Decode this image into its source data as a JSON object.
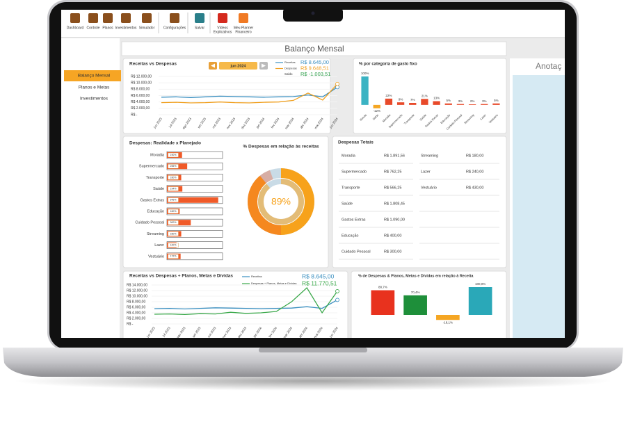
{
  "toolbar": {
    "buttons": [
      [
        "Dashboard"
      ],
      [
        "Controle"
      ],
      [
        "Planos"
      ],
      [
        "Investimentos"
      ],
      [
        "Simulador"
      ],
      [
        "Configurações"
      ],
      [
        "Salvar"
      ],
      [
        "Vídeos",
        "Explicativos"
      ],
      [
        "Meu Planner",
        "Financeiro"
      ]
    ]
  },
  "sidebar": [
    "Balanço Mensal",
    "Planos e Metas",
    "Investimentos"
  ],
  "header": {
    "title": "Balanço Mensal",
    "notes_title": "Anotaç"
  },
  "month_selector": "jun 2024",
  "expenses_table": {
    "title": "Despesas Totais",
    "left_rows": [
      [
        "Moradia",
        "R$ 1.891,56"
      ],
      [
        "Supermercado",
        "R$ 762,25"
      ],
      [
        "Transporte",
        "R$ 566,25"
      ],
      [
        "Saúde",
        "R$ 1.808,45"
      ],
      [
        "Gastos Extras",
        "R$ 1.090,00"
      ],
      [
        "Educação",
        "R$ 400,00"
      ],
      [
        "Cuidado Pessoal",
        "R$ 300,00"
      ]
    ],
    "right_rows": [
      [
        "Streaming",
        "R$ 180,00"
      ],
      [
        "Lazer",
        "R$ 240,00"
      ],
      [
        "Vestuário",
        "R$ 430,00"
      ]
    ]
  },
  "chart_data": [
    {
      "type": "line",
      "title": "Receitas vs Despesas",
      "categories": [
        "jun 2023",
        "jul 2023",
        "ago 2023",
        "set 2023",
        "out 2023",
        "nov 2023",
        "dez 2023",
        "jan 2024",
        "fev 2024",
        "mar 2024",
        "abr 2024",
        "mai 2024",
        "jun 2024"
      ],
      "series": [
        {
          "name": "Receitas",
          "color": "#3a8fc0",
          "values": [
            5500,
            5600,
            5400,
            5600,
            5800,
            5700,
            5600,
            5500,
            5600,
            5700,
            6200,
            5600,
            8645
          ],
          "legend_value": "R$ 8.645,00"
        },
        {
          "name": "Despesas",
          "color": "#f0a020",
          "values": [
            3800,
            3900,
            3700,
            3800,
            4000,
            3800,
            3700,
            3900,
            4000,
            4500,
            6800,
            4600,
            9648.51
          ],
          "legend_value": "R$ 9.648,51"
        }
      ],
      "summary": {
        "name": "Saldo",
        "color": "#2e9e4a",
        "value": -1003.51,
        "value_label": "R$ -1.003,51"
      },
      "ylim": [
        0,
        12000
      ],
      "yticks": [
        {
          "value": 0,
          "label": "R$ -"
        },
        {
          "value": 2000,
          "label": "R$ 2.000,00"
        },
        {
          "value": 4000,
          "label": "R$ 4.000,00"
        },
        {
          "value": 6000,
          "label": "R$ 6.000,00"
        },
        {
          "value": 8000,
          "label": "R$ 8.000,00"
        },
        {
          "value": 10000,
          "label": "R$ 10.000,00"
        },
        {
          "value": 12000,
          "label": "R$ 12.000,00"
        }
      ]
    },
    {
      "type": "bar",
      "title": "% por categoria de gasto fixo",
      "categories": [
        "Renda",
        "Saldo",
        "Moradia",
        "Supermercado",
        "Transporte",
        "Saúde",
        "Gastos Extras",
        "Educação",
        "Cuidado Pessoal",
        "Streaming",
        "Lazer",
        "Vestuário"
      ],
      "values": [
        100,
        -12,
        22,
        9,
        7,
        21,
        13,
        5,
        3,
        2,
        3,
        5
      ],
      "value_labels": [
        "100%",
        "-12%",
        "22%",
        "9%",
        "7%",
        "21%",
        "13%",
        "5%",
        "3%",
        "2%",
        "3%",
        "5%"
      ],
      "colors": [
        "#3bb3c3",
        "#f5a623",
        "#e84a2a",
        "#e84a2a",
        "#e84a2a",
        "#e84a2a",
        "#e84a2a",
        "#e84a2a",
        "#e84a2a",
        "#e84a2a",
        "#e84a2a",
        "#e84a2a"
      ],
      "ylim": [
        -15,
        100
      ]
    },
    {
      "type": "hbar",
      "title": "Despesas: Realidade x Planejado",
      "categories": [
        "Moradia",
        "Supermercado",
        "Transporte",
        "Saúde",
        "Gastos Extras",
        "Educação",
        "Cuidado Pessoal",
        "Streaming",
        "Lazer",
        "Vestuário"
      ],
      "values": [
        190,
        255,
        180,
        194,
        645,
        160,
        300,
        180,
        120,
        172
      ],
      "value_labels": [
        "190%",
        "255%",
        "180%",
        "194%",
        "645%",
        "160%",
        "300%",
        "180%",
        "120%",
        "172%"
      ],
      "color": "#f05a28",
      "xlim": [
        0,
        700
      ]
    },
    {
      "type": "donut",
      "title": "% Despesas em relação às receitas",
      "values": [
        89
      ],
      "value_labels": [
        "89%"
      ],
      "color": "#f7a21b"
    },
    {
      "type": "line",
      "title": "Receitas vs Despesas + Planos, Metas e Dívidas",
      "categories": [
        "jun 2023",
        "jul 2023",
        "ago 2023",
        "set 2023",
        "out 2023",
        "nov 2023",
        "dez 2023",
        "jan 2024",
        "fev 2024",
        "mar 2024",
        "abr 2024",
        "mai 2024",
        "jun 2024"
      ],
      "series": [
        {
          "name": "Receitas",
          "color": "#3a8fc0",
          "values": [
            5500,
            5600,
            5400,
            5600,
            5800,
            5700,
            5600,
            5500,
            5600,
            5700,
            6200,
            5600,
            8645
          ],
          "legend_value": "R$ 8.645,00"
        },
        {
          "name": "Despesas + Planos, Metas e Dívidas",
          "color": "#3aa84a",
          "values": [
            3500,
            3600,
            3400,
            3700,
            3600,
            4200,
            3800,
            4000,
            4500,
            8000,
            13000,
            4000,
            11770.51
          ],
          "legend_value": "R$ 11.770,51"
        }
      ],
      "ylim": [
        0,
        14000
      ],
      "yticks": [
        {
          "value": 0,
          "label": "R$ -"
        },
        {
          "value": 2000,
          "label": "R$ 2.000,00"
        },
        {
          "value": 4000,
          "label": "R$ 4.000,00"
        },
        {
          "value": 6000,
          "label": "R$ 6.000,00"
        },
        {
          "value": 8000,
          "label": "R$ 8.000,00"
        },
        {
          "value": 10000,
          "label": "R$ 10.000,00"
        },
        {
          "value": 12000,
          "label": "R$ 12.000,00"
        },
        {
          "value": 14000,
          "label": "R$ 14.000,00"
        }
      ]
    },
    {
      "type": "bar",
      "title": "% de Despesas & Planos, Metas e Dívidas em relação à Receita",
      "values": [
        88.7,
        70.4,
        -18.1,
        100
      ],
      "value_labels": [
        "88,7%",
        "70,4%",
        "-18,1%",
        "100,0%"
      ],
      "colors": [
        "#e8321e",
        "#1e8f3a",
        "#f5a623",
        "#2aa8b8"
      ],
      "ylim": [
        -25,
        100
      ]
    }
  ]
}
